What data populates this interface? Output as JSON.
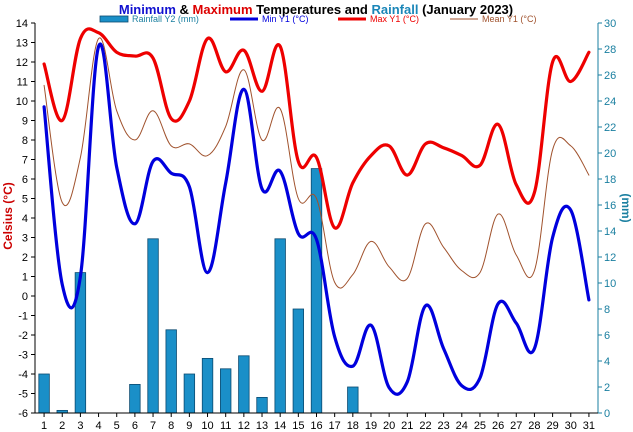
{
  "chart_data": {
    "type": "line",
    "title_parts": [
      {
        "text": "Minimum",
        "color": "#1010d0"
      },
      {
        "text": " & ",
        "color": "#000000"
      },
      {
        "text": "Maximum",
        "color": "#dd0000"
      },
      {
        "text": " Temperatures and ",
        "color": "#000000"
      },
      {
        "text": "Rainfall",
        "color": "#1a86b8"
      },
      {
        "text": " (January 2023)",
        "color": "#000000"
      }
    ],
    "ylabel_left": "Celsius (°C)",
    "ylabel_right": "(mm)",
    "x": [
      1,
      2,
      3,
      4,
      5,
      6,
      7,
      8,
      9,
      10,
      11,
      12,
      13,
      14,
      15,
      16,
      17,
      18,
      19,
      20,
      21,
      22,
      23,
      24,
      25,
      26,
      27,
      28,
      29,
      30,
      31
    ],
    "xlim": [
      0.5,
      31.5
    ],
    "ylim_left": [
      -6,
      14
    ],
    "yticks_left": [
      -6,
      -5,
      -4,
      -3,
      -2,
      -1,
      0,
      1,
      2,
      3,
      4,
      5,
      6,
      7,
      8,
      9,
      10,
      11,
      12,
      13,
      14
    ],
    "ylim_right": [
      0,
      30
    ],
    "yticks_right": [
      0,
      2,
      4,
      6,
      8,
      10,
      12,
      14,
      16,
      18,
      20,
      22,
      24,
      26,
      28,
      30
    ],
    "grid": false,
    "legend_position": "top",
    "series": [
      {
        "name": "Rainfall Y2 (mm)",
        "kind": "bar",
        "axis": "right",
        "color": "#1a8fc8",
        "values": [
          3.0,
          0.2,
          10.8,
          0,
          0,
          2.2,
          13.4,
          6.4,
          3.0,
          4.2,
          3.4,
          4.4,
          1.2,
          13.4,
          8.0,
          18.8,
          0,
          2.0,
          0,
          0,
          0,
          0,
          0,
          0,
          0,
          0,
          0,
          0,
          0,
          0,
          0
        ]
      },
      {
        "name": "Min Y1 (°C)",
        "kind": "line",
        "axis": "left",
        "color": "#0000dd",
        "values": [
          9.7,
          0.6,
          1.0,
          12.8,
          6.6,
          3.7,
          6.9,
          6.3,
          5.6,
          1.2,
          5.8,
          10.6,
          5.5,
          6.4,
          3.2,
          2.9,
          -2.1,
          -3.6,
          -1.5,
          -4.7,
          -4.4,
          -0.5,
          -2.7,
          -4.6,
          -4.2,
          -0.4,
          -1.4,
          -2.7,
          3.0,
          4.4,
          -0.2
        ]
      },
      {
        "name": "Max Y1 (°C)",
        "kind": "line",
        "axis": "left",
        "color": "#ee0000",
        "values": [
          11.9,
          9.0,
          13.2,
          13.5,
          12.5,
          12.3,
          12.2,
          9.1,
          10.0,
          13.2,
          11.5,
          12.6,
          10.5,
          12.8,
          6.9,
          7.1,
          3.5,
          5.8,
          7.2,
          7.7,
          6.2,
          7.8,
          7.6,
          7.2,
          6.7,
          8.8,
          5.7,
          5.3,
          12.0,
          11.0,
          12.5
        ]
      },
      {
        "name": "Mean Y1 (°C)",
        "kind": "line",
        "axis": "left",
        "color": "#a0522d",
        "values": [
          10.8,
          4.8,
          7.1,
          13.2,
          9.5,
          8.0,
          9.5,
          7.7,
          7.8,
          7.2,
          8.7,
          11.6,
          8.0,
          9.6,
          5.0,
          5.0,
          0.7,
          1.1,
          2.8,
          1.5,
          0.9,
          3.7,
          2.5,
          1.3,
          1.2,
          4.2,
          2.1,
          1.3,
          7.5,
          7.7,
          6.2
        ]
      }
    ]
  }
}
